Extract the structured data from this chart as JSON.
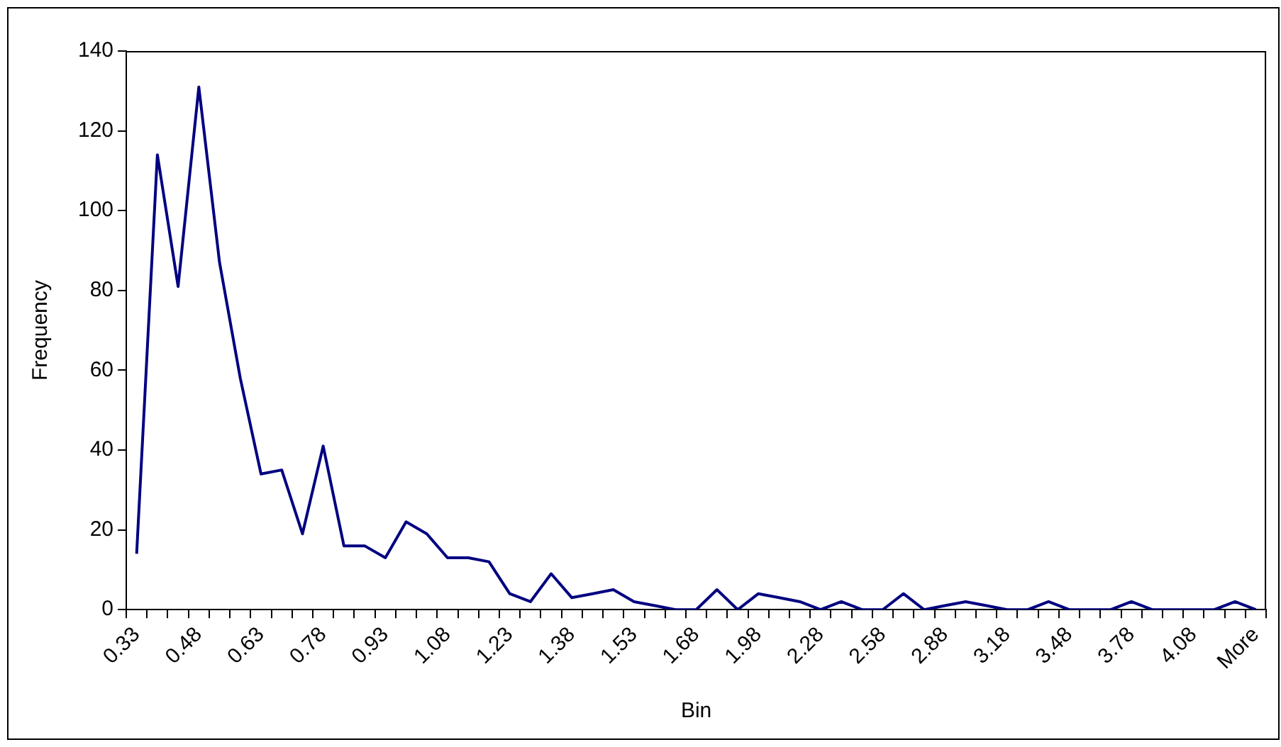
{
  "chart_data": {
    "type": "line",
    "xlabel": "Bin",
    "ylabel": "Frequency",
    "categories": [
      "0.33",
      null,
      null,
      "0.48",
      null,
      null,
      "0.63",
      null,
      null,
      "0.78",
      null,
      null,
      "0.93",
      null,
      null,
      "1.08",
      null,
      null,
      "1.23",
      null,
      null,
      "1.38",
      null,
      null,
      "1.53",
      null,
      null,
      "1.68",
      null,
      null,
      "1.98",
      null,
      null,
      "2.28",
      null,
      null,
      "2.58",
      null,
      null,
      "2.88",
      null,
      null,
      "3.18",
      null,
      null,
      "3.48",
      null,
      null,
      "3.78",
      null,
      null,
      "4.08",
      null,
      null,
      "More"
    ],
    "series": [
      {
        "color": "#000080",
        "values": [
          14,
          114,
          81,
          131,
          87,
          58,
          34,
          35,
          19,
          41,
          16,
          16,
          13,
          22,
          19,
          13,
          13,
          12,
          4,
          2,
          9,
          3,
          4,
          5,
          2,
          1,
          0,
          0,
          5,
          0,
          4,
          3,
          2,
          0,
          2,
          0,
          0,
          4,
          0,
          1,
          2,
          1,
          0,
          0,
          2,
          0,
          0,
          0,
          2,
          0,
          0,
          0,
          0,
          2,
          0
        ]
      }
    ],
    "ylim": [
      0,
      140
    ],
    "yticks": [
      0,
      20,
      40,
      60,
      80,
      100,
      120,
      140
    ],
    "grid": false,
    "legend": false,
    "marker": "none",
    "line_style": "solid"
  }
}
